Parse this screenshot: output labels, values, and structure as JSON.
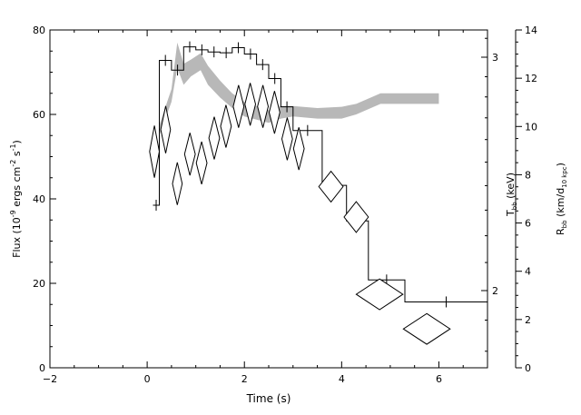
{
  "chart_data": {
    "type": "line",
    "xlabel": "Time (s)",
    "xlim": [
      -2,
      7
    ],
    "x_ticks": [
      -2,
      0,
      2,
      4,
      6
    ],
    "left_axis": {
      "label": "Flux (10",
      "label_exp1": "-9",
      "label_mid": " ergs cm",
      "label_exp2": "-2",
      "label_s": " s",
      "label_exp3": "-1",
      "label_end": ")",
      "lim": [
        0,
        80
      ],
      "ticks": [
        0,
        20,
        40,
        60,
        80
      ]
    },
    "temp_axis": {
      "label_main": "T",
      "label_sub": "bb",
      "label_unit": " (keV)",
      "ticks": [
        2,
        3
      ]
    },
    "radius_axis": {
      "label_main": "R",
      "label_sub": "bb",
      "label_unit": " (km/d",
      "label_sub2": "10 kpc",
      "label_close": ")",
      "lim": [
        0,
        14
      ],
      "ticks": [
        0,
        2,
        4,
        6,
        8,
        10,
        12,
        14
      ]
    },
    "series": [
      {
        "kind": "flux_histogram",
        "steps": [
          {
            "x0": 0.12,
            "x1": 0.25,
            "y": 38.5
          },
          {
            "x0": 0.25,
            "x1": 0.5,
            "y": 72.8
          },
          {
            "x0": 0.5,
            "x1": 0.75,
            "y": 70.5
          },
          {
            "x0": 0.75,
            "x1": 1.0,
            "y": 76.0
          },
          {
            "x0": 1.0,
            "x1": 1.25,
            "y": 75.3
          },
          {
            "x0": 1.25,
            "x1": 1.5,
            "y": 74.8
          },
          {
            "x0": 1.5,
            "x1": 1.75,
            "y": 74.6
          },
          {
            "x0": 1.75,
            "x1": 2.0,
            "y": 75.8
          },
          {
            "x0": 2.0,
            "x1": 2.25,
            "y": 74.3
          },
          {
            "x0": 2.25,
            "x1": 2.5,
            "y": 71.8
          },
          {
            "x0": 2.5,
            "x1": 2.75,
            "y": 68.5
          },
          {
            "x0": 2.75,
            "x1": 3.0,
            "y": 61.8
          },
          {
            "x0": 3.0,
            "x1": 3.6,
            "y": 56.2
          },
          {
            "x0": 3.6,
            "x1": 4.1,
            "y": 43.2
          },
          {
            "x0": 4.1,
            "x1": 4.55,
            "y": 34.8
          },
          {
            "x0": 4.55,
            "x1": 5.3,
            "y": 20.8
          },
          {
            "x0": 5.3,
            "x1": 7.0,
            "y": 15.6
          }
        ]
      },
      {
        "kind": "temperature_diamonds",
        "points": [
          {
            "x": 0.15,
            "y": 51.2,
            "dx": 0.1,
            "dy": 2.2
          },
          {
            "x": 0.38,
            "y": 56.4,
            "dx": 0.1,
            "dy": 2.0
          },
          {
            "x": 0.62,
            "y": 43.6,
            "dx": 0.1,
            "dy": 1.8
          },
          {
            "x": 0.88,
            "y": 50.6,
            "dx": 0.11,
            "dy": 1.8
          },
          {
            "x": 1.12,
            "y": 48.5,
            "dx": 0.11,
            "dy": 1.8
          },
          {
            "x": 1.38,
            "y": 54.4,
            "dx": 0.11,
            "dy": 1.8
          },
          {
            "x": 1.62,
            "y": 57.2,
            "dx": 0.11,
            "dy": 1.8
          },
          {
            "x": 1.88,
            "y": 61.9,
            "dx": 0.11,
            "dy": 1.8
          },
          {
            "x": 2.12,
            "y": 62.4,
            "dx": 0.11,
            "dy": 1.8
          },
          {
            "x": 2.38,
            "y": 61.9,
            "dx": 0.11,
            "dy": 1.8
          },
          {
            "x": 2.62,
            "y": 60.5,
            "dx": 0.11,
            "dy": 1.8
          },
          {
            "x": 2.88,
            "y": 54.2,
            "dx": 0.11,
            "dy": 1.8
          },
          {
            "x": 3.12,
            "y": 51.9,
            "dx": 0.11,
            "dy": 1.8
          },
          {
            "x": 3.78,
            "y": 42.9,
            "dx": 0.25,
            "dy": 1.3
          },
          {
            "x": 4.3,
            "y": 35.7,
            "dx": 0.25,
            "dy": 1.3
          },
          {
            "x": 4.78,
            "y": 17.4,
            "dx": 0.48,
            "dy": 1.3
          },
          {
            "x": 5.75,
            "y": 9.2,
            "dx": 0.48,
            "dy": 1.3
          }
        ]
      },
      {
        "kind": "radius_band",
        "x": [
          0.25,
          0.5,
          0.62,
          0.75,
          0.9,
          1.1,
          1.25,
          1.5,
          1.75,
          2.0,
          2.5,
          2.75,
          3.0,
          3.5,
          4.0,
          4.3,
          4.8,
          5.2,
          5.8,
          6.0
        ],
        "y_low": [
          55.0,
          63.0,
          71.0,
          67.0,
          69.0,
          70.5,
          67.0,
          64.0,
          61.5,
          59.5,
          58.0,
          59.0,
          59.5,
          59.0,
          59.0,
          60.0,
          62.5,
          62.5,
          62.5,
          62.5
        ],
        "y_high": [
          57.5,
          66.0,
          77.0,
          72.0,
          73.0,
          74.5,
          71.5,
          68.0,
          65.0,
          63.0,
          61.0,
          62.0,
          62.0,
          61.5,
          61.8,
          62.5,
          65.0,
          65.0,
          65.0,
          65.0
        ]
      }
    ],
    "color_radius_band": "#b8b8b8"
  }
}
